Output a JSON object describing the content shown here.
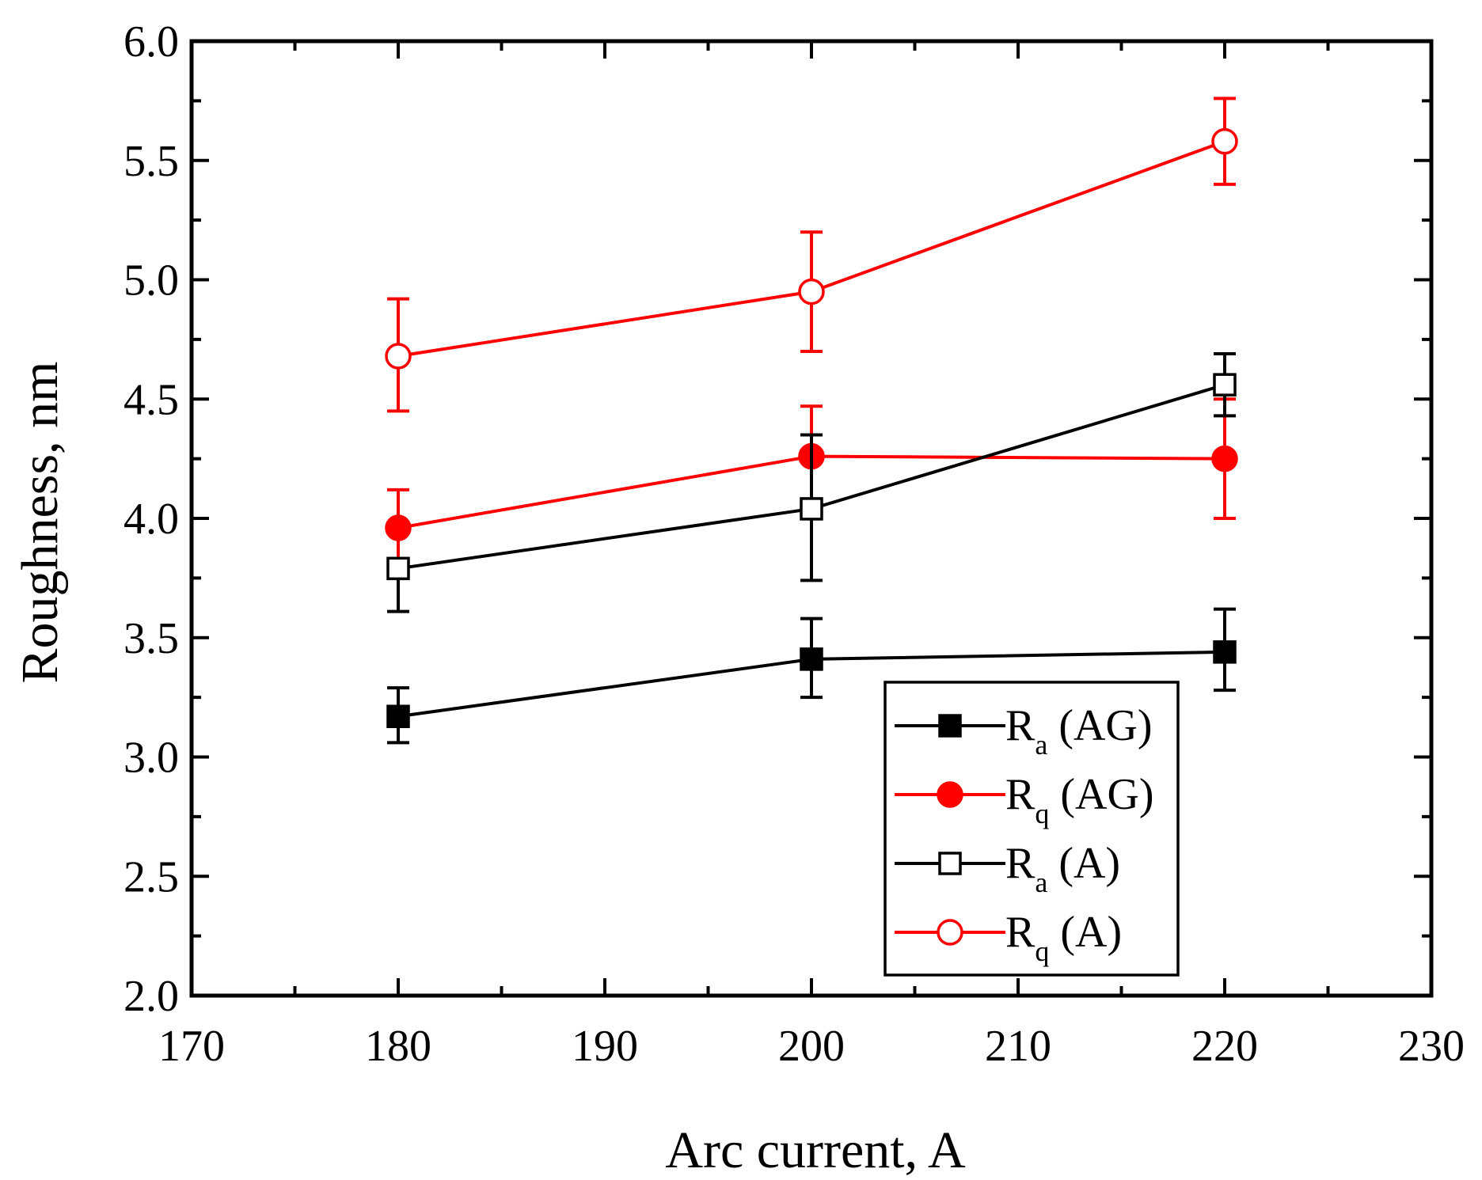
{
  "chart_data": {
    "type": "line",
    "xlabel": "Arc current, A",
    "ylabel": "Roughness, nm",
    "xlim": [
      170,
      230
    ],
    "ylim": [
      2.0,
      6.0
    ],
    "x_ticks": [
      "170",
      "180",
      "190",
      "200",
      "210",
      "220",
      "230"
    ],
    "y_ticks": [
      "2.0",
      "2.5",
      "3.0",
      "3.5",
      "4.0",
      "4.5",
      "5.0",
      "5.5",
      "6.0"
    ],
    "x_tick_values": [
      170,
      180,
      190,
      200,
      210,
      220,
      230
    ],
    "y_tick_values": [
      2.0,
      2.5,
      3.0,
      3.5,
      4.0,
      4.5,
      5.0,
      5.5,
      6.0
    ],
    "x_minor_step": 5,
    "y_minor_step": 0.25,
    "series": [
      {
        "name": "Ra (AG)",
        "label_main": "R",
        "label_sub": "a",
        "label_rest": " (AG)",
        "color": "#000000",
        "marker": "square",
        "filled": true,
        "x": [
          180,
          200,
          220
        ],
        "y": [
          3.17,
          3.41,
          3.44
        ],
        "err_plus": [
          0.12,
          0.17,
          0.18
        ],
        "err_minus": [
          0.11,
          0.16,
          0.16
        ]
      },
      {
        "name": "Rq (AG)",
        "label_main": "R",
        "label_sub": "q",
        "label_rest": " (AG)",
        "color": "#ff0000",
        "marker": "circle",
        "filled": true,
        "x": [
          180,
          200,
          220
        ],
        "y": [
          3.96,
          4.26,
          4.25
        ],
        "err_plus": [
          0.16,
          0.21,
          0.25
        ],
        "err_minus": [
          0.16,
          0.0,
          0.25
        ]
      },
      {
        "name": "Ra (A)",
        "label_main": "R",
        "label_sub": "a",
        "label_rest": " (A)",
        "color": "#000000",
        "marker": "square",
        "filled": false,
        "x": [
          180,
          200,
          220
        ],
        "y": [
          3.79,
          4.04,
          4.56
        ],
        "err_plus": [
          0.0,
          0.31,
          0.13
        ],
        "err_minus": [
          0.18,
          0.3,
          0.13
        ]
      },
      {
        "name": "Rq (A)",
        "label_main": "R",
        "label_sub": "q",
        "label_rest": " (A)",
        "color": "#ff0000",
        "marker": "circle",
        "filled": false,
        "x": [
          180,
          200,
          220
        ],
        "y": [
          4.68,
          4.95,
          5.58
        ],
        "err_plus": [
          0.24,
          0.25,
          0.18
        ],
        "err_minus": [
          0.23,
          0.25,
          0.18
        ]
      }
    ],
    "legend_position": "bottom-right"
  }
}
